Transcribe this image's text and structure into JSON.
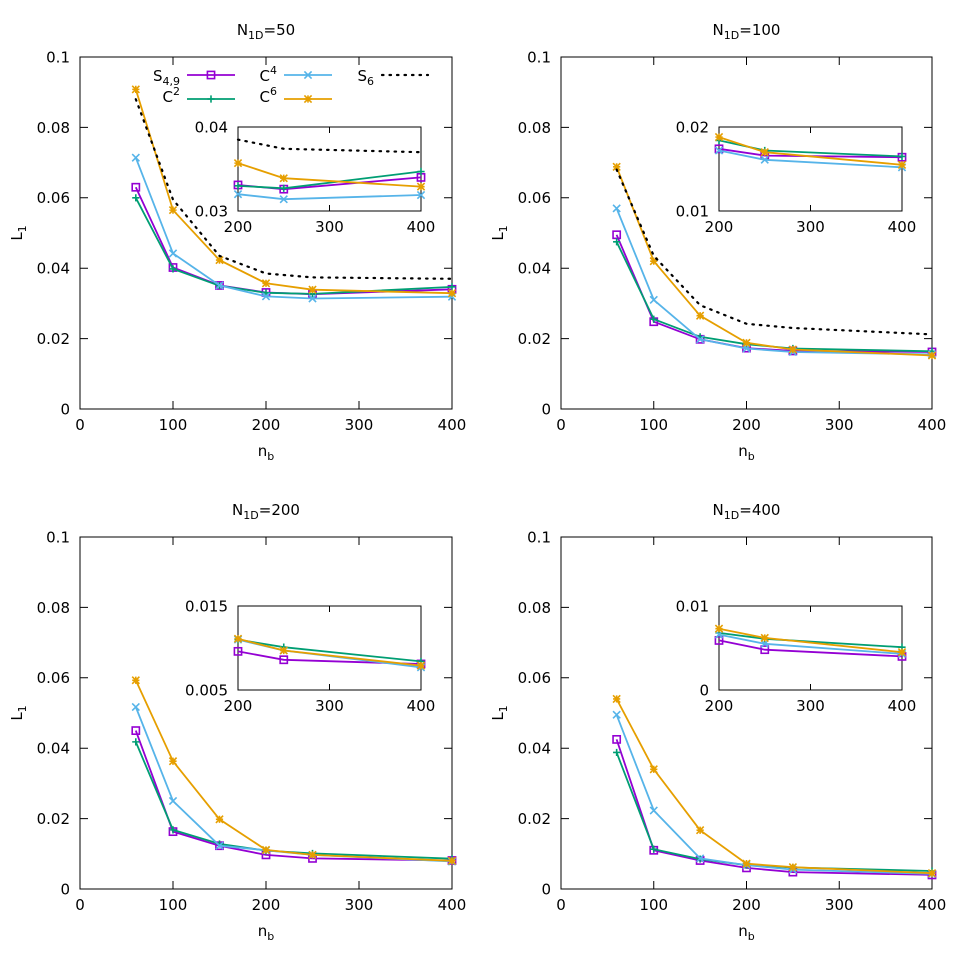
{
  "colors": {
    "S49": "#9400d3",
    "C2": "#009e73",
    "C4": "#56b4e9",
    "C6": "#e69f00",
    "S6": "#000000"
  },
  "legend_items": [
    {
      "key": "S49",
      "base": "S",
      "sub": "4,9",
      "sup": "",
      "marker": "square",
      "style": "solid"
    },
    {
      "key": "C2",
      "base": "C",
      "sub": "",
      "sup": "2",
      "marker": "plus",
      "style": "solid"
    },
    {
      "key": "C4",
      "base": "C",
      "sub": "",
      "sup": "4",
      "marker": "cross",
      "style": "solid"
    },
    {
      "key": "C6",
      "base": "C",
      "sub": "",
      "sup": "6",
      "marker": "star",
      "style": "solid"
    },
    {
      "key": "S6",
      "base": "S",
      "sub": "6",
      "sup": "",
      "marker": "none",
      "style": "dotted"
    }
  ],
  "chart_data": [
    {
      "type": "line",
      "title": {
        "base": "N",
        "sub": "1D",
        "rest": "=50"
      },
      "xlabel": {
        "base": "n",
        "sub": "b"
      },
      "ylabel": {
        "base": "L",
        "sub": "1"
      },
      "xlim": [
        0,
        400
      ],
      "ylim": [
        0,
        0.1
      ],
      "xticks": [
        "0",
        "100",
        "200",
        "300",
        "400"
      ],
      "yticks": [
        "0",
        "0.02",
        "0.04",
        "0.06",
        "0.08",
        "0.1"
      ],
      "x": [
        60,
        100,
        150,
        200,
        250,
        400
      ],
      "series": [
        {
          "key": "S49",
          "name": "S4,9",
          "values": [
            0.063,
            0.0402,
            0.0351,
            0.0331,
            0.0326,
            0.034
          ]
        },
        {
          "key": "C2",
          "name": "C2",
          "values": [
            0.06,
            0.0398,
            0.035,
            0.033,
            0.0327,
            0.0347
          ]
        },
        {
          "key": "C4",
          "name": "C4",
          "values": [
            0.0714,
            0.0442,
            0.0351,
            0.032,
            0.0314,
            0.0319
          ]
        },
        {
          "key": "C6",
          "name": "C6",
          "values": [
            0.0908,
            0.0565,
            0.0423,
            0.0357,
            0.0339,
            0.0329
          ]
        },
        {
          "key": "S6",
          "name": "S6",
          "values": [
            0.088,
            0.0595,
            0.0435,
            0.0385,
            0.0374,
            0.037
          ]
        }
      ],
      "inset": {
        "xlim": [
          200,
          400
        ],
        "ylim": [
          0.03,
          0.04
        ],
        "xticks": [
          "200",
          "300",
          "400"
        ],
        "yticks": [
          "0.03",
          "0.04"
        ],
        "x": [
          200,
          250,
          400
        ],
        "series": [
          {
            "key": "S49",
            "values": [
              0.0331,
              0.0326,
              0.034
            ]
          },
          {
            "key": "C2",
            "values": [
              0.033,
              0.0327,
              0.0347
            ]
          },
          {
            "key": "C4",
            "values": [
              0.032,
              0.0314,
              0.0319
            ]
          },
          {
            "key": "C6",
            "values": [
              0.0357,
              0.0339,
              0.0329
            ]
          },
          {
            "key": "S6",
            "values": [
              0.0385,
              0.0374,
              0.037
            ]
          }
        ]
      }
    },
    {
      "type": "line",
      "title": {
        "base": "N",
        "sub": "1D",
        "rest": "=100"
      },
      "xlabel": {
        "base": "n",
        "sub": "b"
      },
      "ylabel": {
        "base": "L",
        "sub": "1"
      },
      "xlim": [
        0,
        400
      ],
      "ylim": [
        0,
        0.1
      ],
      "xticks": [
        "0",
        "100",
        "200",
        "300",
        "400"
      ],
      "yticks": [
        "0",
        "0.02",
        "0.04",
        "0.06",
        "0.08",
        "0.1"
      ],
      "x": [
        60,
        100,
        150,
        200,
        250,
        400
      ],
      "series": [
        {
          "key": "S49",
          "name": "S4,9",
          "values": [
            0.0495,
            0.0248,
            0.0198,
            0.0173,
            0.0165,
            0.0162
          ]
        },
        {
          "key": "C2",
          "name": "C2",
          "values": [
            0.0475,
            0.0255,
            0.0205,
            0.0184,
            0.0172,
            0.0164
          ]
        },
        {
          "key": "C4",
          "name": "C4",
          "values": [
            0.057,
            0.031,
            0.0198,
            0.0172,
            0.0162,
            0.0155
          ]
        },
        {
          "key": "C6",
          "name": "C6",
          "values": [
            0.0688,
            0.042,
            0.0265,
            0.0188,
            0.0169,
            0.0152
          ]
        },
        {
          "key": "S6",
          "name": "S6",
          "values": [
            0.068,
            0.0435,
            0.0295,
            0.0242,
            0.023,
            0.0212
          ]
        }
      ],
      "inset": {
        "xlim": [
          200,
          400
        ],
        "ylim": [
          0.01,
          0.02
        ],
        "xticks": [
          "200",
          "300",
          "400"
        ],
        "yticks": [
          "0.01",
          "0.02"
        ],
        "x": [
          200,
          250,
          400
        ],
        "series": [
          {
            "key": "S49",
            "values": [
              0.0174,
              0.0166,
              0.0164
            ]
          },
          {
            "key": "C2",
            "values": [
              0.0184,
              0.0172,
              0.0165
            ]
          },
          {
            "key": "C4",
            "values": [
              0.0172,
              0.0161,
              0.0152
            ]
          },
          {
            "key": "C6",
            "values": [
              0.0188,
              0.017,
              0.0155
            ]
          }
        ]
      }
    },
    {
      "type": "line",
      "title": {
        "base": "N",
        "sub": "1D",
        "rest": "=200"
      },
      "xlabel": {
        "base": "n",
        "sub": "b"
      },
      "ylabel": {
        "base": "L",
        "sub": "1"
      },
      "xlim": [
        0,
        400
      ],
      "ylim": [
        0,
        0.1
      ],
      "xticks": [
        "0",
        "100",
        "200",
        "300",
        "400"
      ],
      "yticks": [
        "0",
        "0.02",
        "0.04",
        "0.06",
        "0.08",
        "0.1"
      ],
      "x": [
        60,
        100,
        150,
        200,
        250,
        400
      ],
      "series": [
        {
          "key": "S49",
          "name": "S4,9",
          "values": [
            0.045,
            0.0163,
            0.0123,
            0.0097,
            0.0087,
            0.0081
          ]
        },
        {
          "key": "C2",
          "name": "C2",
          "values": [
            0.0418,
            0.0168,
            0.0128,
            0.0109,
            0.0101,
            0.0086
          ]
        },
        {
          "key": "C4",
          "name": "C4",
          "values": [
            0.0517,
            0.025,
            0.0123,
            0.011,
            0.0097,
            0.0078
          ]
        },
        {
          "key": "C6",
          "name": "C6",
          "values": [
            0.0593,
            0.0363,
            0.0198,
            0.0111,
            0.0097,
            0.008
          ]
        }
      ],
      "inset": {
        "xlim": [
          200,
          400
        ],
        "ylim": [
          0.005,
          0.015
        ],
        "xticks": [
          "200",
          "300",
          "400"
        ],
        "yticks": [
          "0.005",
          "0.015"
        ],
        "x": [
          200,
          250,
          400
        ],
        "series": [
          {
            "key": "S49",
            "values": [
              0.0096,
              0.0086,
              0.0081
            ]
          },
          {
            "key": "C2",
            "values": [
              0.011,
              0.0101,
              0.0084
            ]
          },
          {
            "key": "C4",
            "values": [
              0.011,
              0.0097,
              0.0077
            ]
          },
          {
            "key": "C6",
            "values": [
              0.0111,
              0.0097,
              0.0079
            ]
          }
        ]
      }
    },
    {
      "type": "line",
      "title": {
        "base": "N",
        "sub": "1D",
        "rest": "=400"
      },
      "xlabel": {
        "base": "n",
        "sub": "b"
      },
      "ylabel": {
        "base": "L",
        "sub": "1"
      },
      "xlim": [
        0,
        400
      ],
      "ylim": [
        0,
        0.1
      ],
      "xticks": [
        "0",
        "100",
        "200",
        "300",
        "400"
      ],
      "yticks": [
        "0",
        "0.02",
        "0.04",
        "0.06",
        "0.08",
        "0.1"
      ],
      "x": [
        60,
        100,
        150,
        200,
        250,
        400
      ],
      "series": [
        {
          "key": "S49",
          "name": "S4,9",
          "values": [
            0.0425,
            0.011,
            0.0081,
            0.006,
            0.0048,
            0.004
          ]
        },
        {
          "key": "C2",
          "name": "C2",
          "values": [
            0.0388,
            0.0113,
            0.0085,
            0.0068,
            0.0061,
            0.0051
          ]
        },
        {
          "key": "C4",
          "name": "C4",
          "values": [
            0.0495,
            0.0223,
            0.0087,
            0.0068,
            0.0055,
            0.0043
          ]
        },
        {
          "key": "C6",
          "name": "C6",
          "values": [
            0.054,
            0.034,
            0.0167,
            0.0072,
            0.0062,
            0.0045
          ]
        }
      ],
      "inset": {
        "xlim": [
          200,
          400
        ],
        "ylim": [
          0,
          0.01
        ],
        "xticks": [
          "200",
          "300",
          "400"
        ],
        "yticks": [
          "0",
          "0.01"
        ],
        "x": [
          200,
          250,
          400
        ],
        "series": [
          {
            "key": "S49",
            "values": [
              0.0059,
              0.0048,
              0.004
            ]
          },
          {
            "key": "C2",
            "values": [
              0.0068,
              0.0061,
              0.0051
            ]
          },
          {
            "key": "C4",
            "values": [
              0.0066,
              0.0055,
              0.0043
            ]
          },
          {
            "key": "C6",
            "values": [
              0.0073,
              0.0062,
              0.0045
            ]
          }
        ]
      }
    }
  ]
}
